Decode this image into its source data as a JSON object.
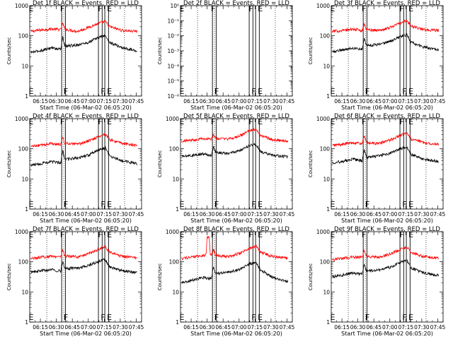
{
  "figure": {
    "colors": {
      "events": "#000000",
      "lld": "#ff0000",
      "axis": "#000000",
      "background": "#ffffff"
    },
    "common": {
      "x_tick_labels": [
        "06:15",
        "06:30",
        "06:45",
        "07:00",
        "07:15",
        "07:30",
        "07:45"
      ],
      "x_tick_minutes": [
        375,
        390,
        405,
        420,
        435,
        450,
        465
      ],
      "x_range_minutes": [
        365,
        470
      ],
      "xlabel": "Start Time (06-Mar-02 06:05:20)",
      "ylabel": "Counts/sec",
      "marker_letters": {
        "E": "E",
        "F": "F"
      },
      "dotted_line_minutes": [
        381,
        397,
        454
      ],
      "band_lines_minutes": [
        [
          395,
          398.5
        ],
        [
          429.5,
          433
        ],
        [
          435.5,
          439
        ]
      ]
    }
  },
  "chart_data": [
    {
      "type": "line",
      "title": "Det 1f BLACK = Events, RED = LLD",
      "y_scale": "log",
      "ylim": [
        1,
        1000
      ],
      "y_tick_labels": [
        "1",
        "10",
        "100",
        "1000"
      ],
      "marker_minutes": {
        "E_left": 366,
        "F1": 395.5,
        "F2": 433,
        "E_right": 439.5
      },
      "series": [
        {
          "name": "LLD",
          "color": "red",
          "x": [
            366,
            375,
            385,
            394,
            396,
            398,
            410,
            420,
            430,
            436,
            440,
            452,
            466
          ],
          "y": [
            140,
            155,
            170,
            160,
            260,
            165,
            140,
            190,
            260,
            300,
            200,
            150,
            140
          ]
        },
        {
          "name": "Events",
          "color": "black",
          "x": [
            366,
            375,
            385,
            394,
            396,
            398,
            410,
            420,
            430,
            436,
            440,
            452,
            466
          ],
          "y": [
            28,
            32,
            40,
            36,
            90,
            45,
            50,
            60,
            90,
            100,
            60,
            40,
            32
          ]
        }
      ]
    },
    {
      "type": "line",
      "title": "Det 2f BLACK = Events, RED = LLD",
      "y_scale": "log",
      "ylim": [
        1e-06,
        1
      ],
      "y_tick_labels": [
        "10⁻⁶",
        "10⁻⁵",
        "10⁻⁴",
        "10⁻³",
        "10⁻²",
        "10⁻¹",
        "10⁰"
      ],
      "marker_minutes": {
        "E_left": 366,
        "F1": 395.5,
        "F2": 433,
        "E_right": 439.5
      },
      "series": []
    },
    {
      "type": "line",
      "title": "Det 3f BLACK = Events, RED = LLD",
      "y_scale": "log",
      "ylim": [
        1,
        1000
      ],
      "y_tick_labels": [
        "1",
        "10",
        "100",
        "1000"
      ],
      "marker_minutes": {
        "E_left": 366,
        "F1": 395.5,
        "F2": 433,
        "E_right": 439.5
      },
      "series": [
        {
          "name": "LLD",
          "color": "red",
          "x": [
            366,
            375,
            385,
            394,
            396,
            398,
            410,
            420,
            430,
            436,
            440,
            452,
            466
          ],
          "y": [
            140,
            150,
            165,
            150,
            250,
            160,
            150,
            190,
            270,
            320,
            210,
            160,
            150
          ]
        },
        {
          "name": "Events",
          "color": "black",
          "x": [
            366,
            375,
            385,
            394,
            396,
            398,
            410,
            420,
            430,
            436,
            440,
            452,
            466
          ],
          "y": [
            30,
            34,
            40,
            36,
            80,
            48,
            52,
            65,
            95,
            110,
            60,
            42,
            35
          ]
        }
      ]
    },
    {
      "type": "line",
      "title": "Det 4f BLACK = Events, RED = LLD",
      "y_scale": "log",
      "ylim": [
        1,
        1000
      ],
      "y_tick_labels": [
        "1",
        "10",
        "100",
        "1000"
      ],
      "marker_minutes": {
        "E_left": 366,
        "F1": 395.5,
        "F2": 433,
        "E_right": 439.5
      },
      "series": [
        {
          "name": "LLD",
          "color": "red",
          "x": [
            366,
            375,
            385,
            394,
            396,
            398,
            410,
            420,
            430,
            436,
            440,
            452,
            466
          ],
          "y": [
            120,
            130,
            150,
            140,
            240,
            150,
            140,
            180,
            260,
            310,
            200,
            150,
            130
          ]
        },
        {
          "name": "Events",
          "color": "black",
          "x": [
            366,
            375,
            385,
            394,
            396,
            398,
            410,
            420,
            430,
            436,
            440,
            452,
            466
          ],
          "y": [
            28,
            32,
            38,
            34,
            85,
            45,
            50,
            62,
            92,
            105,
            58,
            40,
            32
          ]
        }
      ]
    },
    {
      "type": "line",
      "title": "Det 5f BLACK = Events, RED = LLD",
      "y_scale": "log",
      "ylim": [
        1,
        1000
      ],
      "y_tick_labels": [
        "1",
        "10",
        "100",
        "1000"
      ],
      "marker_minutes": {
        "E_left": 366,
        "F1": 395.5,
        "F2": 433,
        "E_right": 439.5
      },
      "series": [
        {
          "name": "LLD",
          "color": "red",
          "x": [
            366,
            375,
            385,
            394,
            396,
            398,
            410,
            420,
            430,
            436,
            440,
            452,
            466
          ],
          "y": [
            180,
            195,
            220,
            205,
            300,
            220,
            210,
            260,
            400,
            450,
            280,
            200,
            180
          ]
        },
        {
          "name": "Events",
          "color": "black",
          "x": [
            366,
            375,
            385,
            394,
            396,
            398,
            410,
            420,
            430,
            436,
            440,
            452,
            466
          ],
          "y": [
            55,
            60,
            68,
            62,
            120,
            75,
            70,
            85,
            130,
            140,
            80,
            60,
            55
          ]
        }
      ]
    },
    {
      "type": "line",
      "title": "Det 6f BLACK = Events, RED = LLD",
      "y_scale": "log",
      "ylim": [
        1,
        1000
      ],
      "y_tick_labels": [
        "1",
        "10",
        "100",
        "1000"
      ],
      "marker_minutes": {
        "E_left": 366,
        "F1": 395.5,
        "F2": 433,
        "E_right": 439.5
      },
      "series": [
        {
          "name": "LLD",
          "color": "red",
          "x": [
            366,
            375,
            385,
            394,
            396,
            398,
            410,
            420,
            430,
            436,
            440,
            452,
            466
          ],
          "y": [
            130,
            140,
            160,
            150,
            260,
            160,
            150,
            195,
            280,
            330,
            210,
            160,
            140
          ]
        },
        {
          "name": "Events",
          "color": "black",
          "x": [
            366,
            375,
            385,
            394,
            396,
            398,
            410,
            420,
            430,
            436,
            440,
            452,
            466
          ],
          "y": [
            35,
            38,
            45,
            40,
            95,
            52,
            58,
            70,
            100,
            115,
            65,
            45,
            38
          ]
        }
      ]
    },
    {
      "type": "line",
      "title": "Det 7f BLACK = Events, RED = LLD",
      "y_scale": "log",
      "ylim": [
        1,
        1000
      ],
      "y_tick_labels": [
        "1",
        "10",
        "100",
        "1000"
      ],
      "marker_minutes": {
        "E_left": 366,
        "F1": 395.5,
        "F2": 433,
        "E_right": 439.5
      },
      "series": [
        {
          "name": "LLD",
          "color": "red",
          "x": [
            366,
            375,
            385,
            394,
            396,
            398,
            410,
            420,
            430,
            436,
            440,
            452,
            466
          ],
          "y": [
            130,
            140,
            155,
            145,
            250,
            155,
            145,
            185,
            270,
            320,
            205,
            150,
            135
          ]
        },
        {
          "name": "Events",
          "color": "black",
          "x": [
            366,
            375,
            385,
            394,
            396,
            398,
            410,
            420,
            430,
            436,
            440,
            452,
            466
          ],
          "y": [
            45,
            50,
            55,
            50,
            100,
            60,
            62,
            75,
            105,
            118,
            68,
            50,
            45
          ]
        }
      ]
    },
    {
      "type": "line",
      "title": "Det 8f BLACK = Events, RED = LLD",
      "y_scale": "log",
      "ylim": [
        1,
        1000
      ],
      "y_tick_labels": [
        "1",
        "10",
        "100",
        "1000"
      ],
      "marker_minutes": {
        "E_left": 366,
        "F1": 395.5,
        "F2": 433,
        "E_right": 439.5
      },
      "series": [
        {
          "name": "LLD",
          "color": "red",
          "x": [
            366,
            375,
            385,
            389,
            390,
            392,
            393,
            394,
            396,
            398,
            410,
            420,
            430,
            436,
            440,
            452,
            466
          ],
          "y": [
            130,
            140,
            160,
            170,
            650,
            650,
            170,
            160,
            260,
            165,
            150,
            190,
            280,
            330,
            210,
            150,
            130
          ]
        },
        {
          "name": "Events",
          "color": "black",
          "x": [
            366,
            375,
            385,
            394,
            396,
            398,
            410,
            420,
            430,
            436,
            440,
            452,
            466
          ],
          "y": [
            20,
            24,
            30,
            28,
            70,
            40,
            45,
            55,
            85,
            95,
            55,
            30,
            22
          ]
        }
      ]
    },
    {
      "type": "line",
      "title": "Det 9f BLACK = Events, RED = LLD",
      "y_scale": "log",
      "ylim": [
        1,
        1000
      ],
      "y_tick_labels": [
        "1",
        "10",
        "100",
        "1000"
      ],
      "marker_minutes": {
        "E_left": 366,
        "F1": 395.5,
        "F2": 433,
        "E_right": 439.5
      },
      "series": [
        {
          "name": "LLD",
          "color": "red",
          "x": [
            366,
            375,
            385,
            394,
            396,
            398,
            410,
            420,
            430,
            436,
            440,
            452,
            466
          ],
          "y": [
            120,
            130,
            145,
            140,
            240,
            150,
            140,
            180,
            260,
            310,
            200,
            150,
            130
          ]
        },
        {
          "name": "Events",
          "color": "black",
          "x": [
            366,
            375,
            385,
            394,
            396,
            398,
            410,
            420,
            430,
            436,
            440,
            452,
            466
          ],
          "y": [
            32,
            36,
            42,
            38,
            85,
            48,
            55,
            65,
            95,
            110,
            62,
            42,
            35
          ]
        }
      ]
    }
  ]
}
